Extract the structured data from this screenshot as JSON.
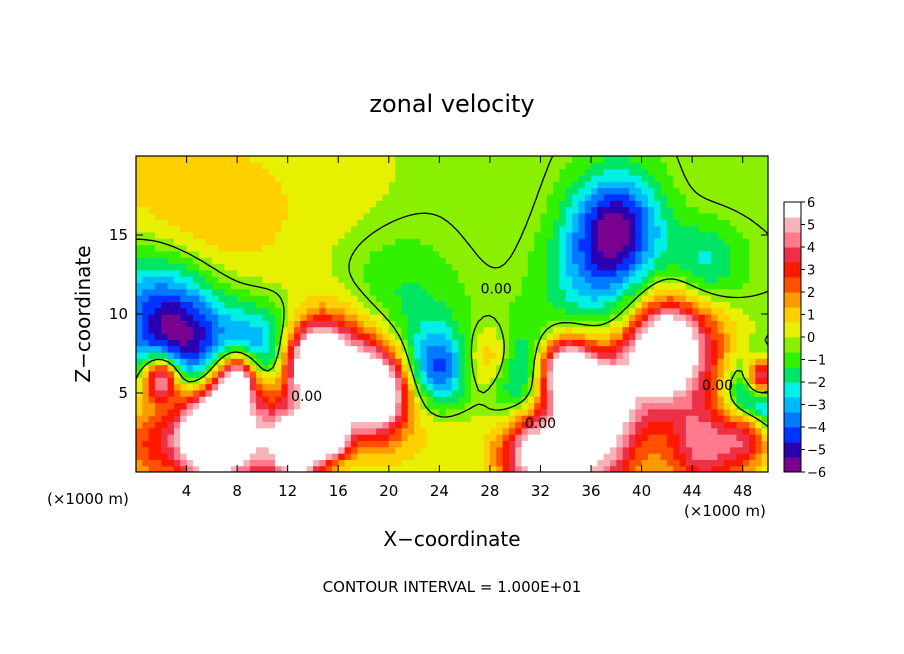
{
  "chart_data": {
    "type": "heatmap",
    "title": "zonal velocity",
    "xlabel": "X−coordinate",
    "ylabel": "Z−coordinate",
    "x_unit_left": "(×1000 m)",
    "x_unit_right": "(×1000 m)",
    "footer": "CONTOUR INTERVAL = 1.000E+01",
    "xlim": [
      0,
      50
    ],
    "ylim": [
      0,
      20
    ],
    "x_ticks": [
      4,
      8,
      12,
      16,
      20,
      24,
      28,
      32,
      36,
      40,
      44,
      48
    ],
    "x_tick_labels": [
      "4",
      "8",
      "12",
      "16",
      "20",
      "24",
      "28",
      "32",
      "36",
      "40",
      "44",
      "48"
    ],
    "y_ticks": [
      5,
      10,
      15
    ],
    "y_tick_labels": [
      "5",
      "10",
      "15"
    ],
    "colorbar": {
      "min": -6,
      "max": 6,
      "ticks": [
        6,
        5,
        4,
        3,
        2,
        1,
        0,
        -1,
        -2,
        -3,
        -4,
        -5,
        -6
      ],
      "tick_labels": [
        "6",
        "5",
        "4",
        "3",
        "2",
        "1",
        "0",
        "−1",
        "−2",
        "−3",
        "−4",
        "−5",
        "−6"
      ],
      "colors": [
        "#7a0090",
        "#2a00b0",
        "#0033ff",
        "#0078ff",
        "#00b8ff",
        "#00f0e6",
        "#00e664",
        "#33f000",
        "#88f000",
        "#e6f000",
        "#ffd000",
        "#ff9900",
        "#ff5000",
        "#ff1800",
        "#ee3044",
        "#ff7a8c",
        "#f4b4b8",
        "#ffffff"
      ]
    },
    "contour_labels": [
      {
        "text": "0.00",
        "x": 28.5,
        "y": 11.3
      },
      {
        "text": "0.00",
        "x": 13.5,
        "y": 4.5
      },
      {
        "text": "0.00",
        "x": 32.0,
        "y": 2.8
      },
      {
        "text": "0.00",
        "x": 46.0,
        "y": 5.2
      }
    ],
    "field_features": [
      {
        "x": 3,
        "y": 17,
        "r": 7,
        "v": 1.5
      },
      {
        "x": 8,
        "y": 15,
        "r": 6,
        "v": 0.6
      },
      {
        "x": 16,
        "y": 18,
        "r": 6,
        "v": 0.7
      },
      {
        "x": 30,
        "y": 17,
        "r": 5,
        "v": 0.3
      },
      {
        "x": 46,
        "y": 18,
        "r": 4,
        "v": 0.4
      },
      {
        "x": 38,
        "y": 15.5,
        "r": 3.5,
        "v": -5.2
      },
      {
        "x": 36,
        "y": 12,
        "r": 4,
        "v": -2.2
      },
      {
        "x": 45,
        "y": 13,
        "r": 3,
        "v": -2.4
      },
      {
        "x": 1,
        "y": 11,
        "r": 4,
        "v": -2.8
      },
      {
        "x": 4,
        "y": 8,
        "r": 4,
        "v": -5.5
      },
      {
        "x": 10,
        "y": 7.5,
        "r": 3,
        "v": -4.0
      },
      {
        "x": 20,
        "y": 9.5,
        "r": 5,
        "v": -2.0
      },
      {
        "x": 24,
        "y": 6.5,
        "r": 2.5,
        "v": -4.0
      },
      {
        "x": 30,
        "y": 6,
        "r": 3,
        "v": -3.8
      },
      {
        "x": 43,
        "y": 7,
        "r": 2.5,
        "v": -3.5
      },
      {
        "x": 49,
        "y": 4.5,
        "r": 2.5,
        "v": -5.5
      },
      {
        "x": 17,
        "y": 6.5,
        "r": 4,
        "v": 5.5
      },
      {
        "x": 14,
        "y": 7,
        "r": 2.5,
        "v": 7.5
      },
      {
        "x": 19,
        "y": 5,
        "r": 2.5,
        "v": 7.0
      },
      {
        "x": 28,
        "y": 7,
        "r": 2.2,
        "v": 3.5
      },
      {
        "x": 43,
        "y": 7.5,
        "r": 4,
        "v": 6.0
      },
      {
        "x": 42,
        "y": 7.5,
        "r": 2.5,
        "v": 8.0
      },
      {
        "x": 37,
        "y": 5,
        "r": 3,
        "v": 5.0
      },
      {
        "x": 34,
        "y": 6.5,
        "r": 2,
        "v": 7.5
      },
      {
        "x": 7,
        "y": 3,
        "r": 4,
        "v": 5.5
      },
      {
        "x": 6,
        "y": 2.5,
        "r": 2.5,
        "v": 8.0
      },
      {
        "x": 1,
        "y": 2,
        "r": 3,
        "v": 3.0
      },
      {
        "x": 2,
        "y": 6,
        "r": 1.5,
        "v": 7.5
      },
      {
        "x": 8,
        "y": 6,
        "r": 1.6,
        "v": 7.5
      },
      {
        "x": 12,
        "y": 2,
        "r": 3,
        "v": 4.0
      },
      {
        "x": 13,
        "y": 1.5,
        "r": 1.6,
        "v": 7.5
      },
      {
        "x": 15.5,
        "y": 2.2,
        "r": 1.3,
        "v": 7.0
      },
      {
        "x": 35,
        "y": 1.5,
        "r": 4.5,
        "v": 6.5
      },
      {
        "x": 31,
        "y": 1.3,
        "r": 2.5,
        "v": 4.0
      },
      {
        "x": 45,
        "y": 1.5,
        "r": 3,
        "v": 4.5
      },
      {
        "x": 48.5,
        "y": 2.5,
        "r": 2,
        "v": 5.0
      },
      {
        "x": 49.5,
        "y": 6,
        "r": 1.2,
        "v": 7.5
      },
      {
        "x": 22,
        "y": 2,
        "r": 4,
        "v": 0.9
      },
      {
        "x": 26,
        "y": 3.5,
        "r": 3,
        "v": 0.6
      }
    ]
  }
}
